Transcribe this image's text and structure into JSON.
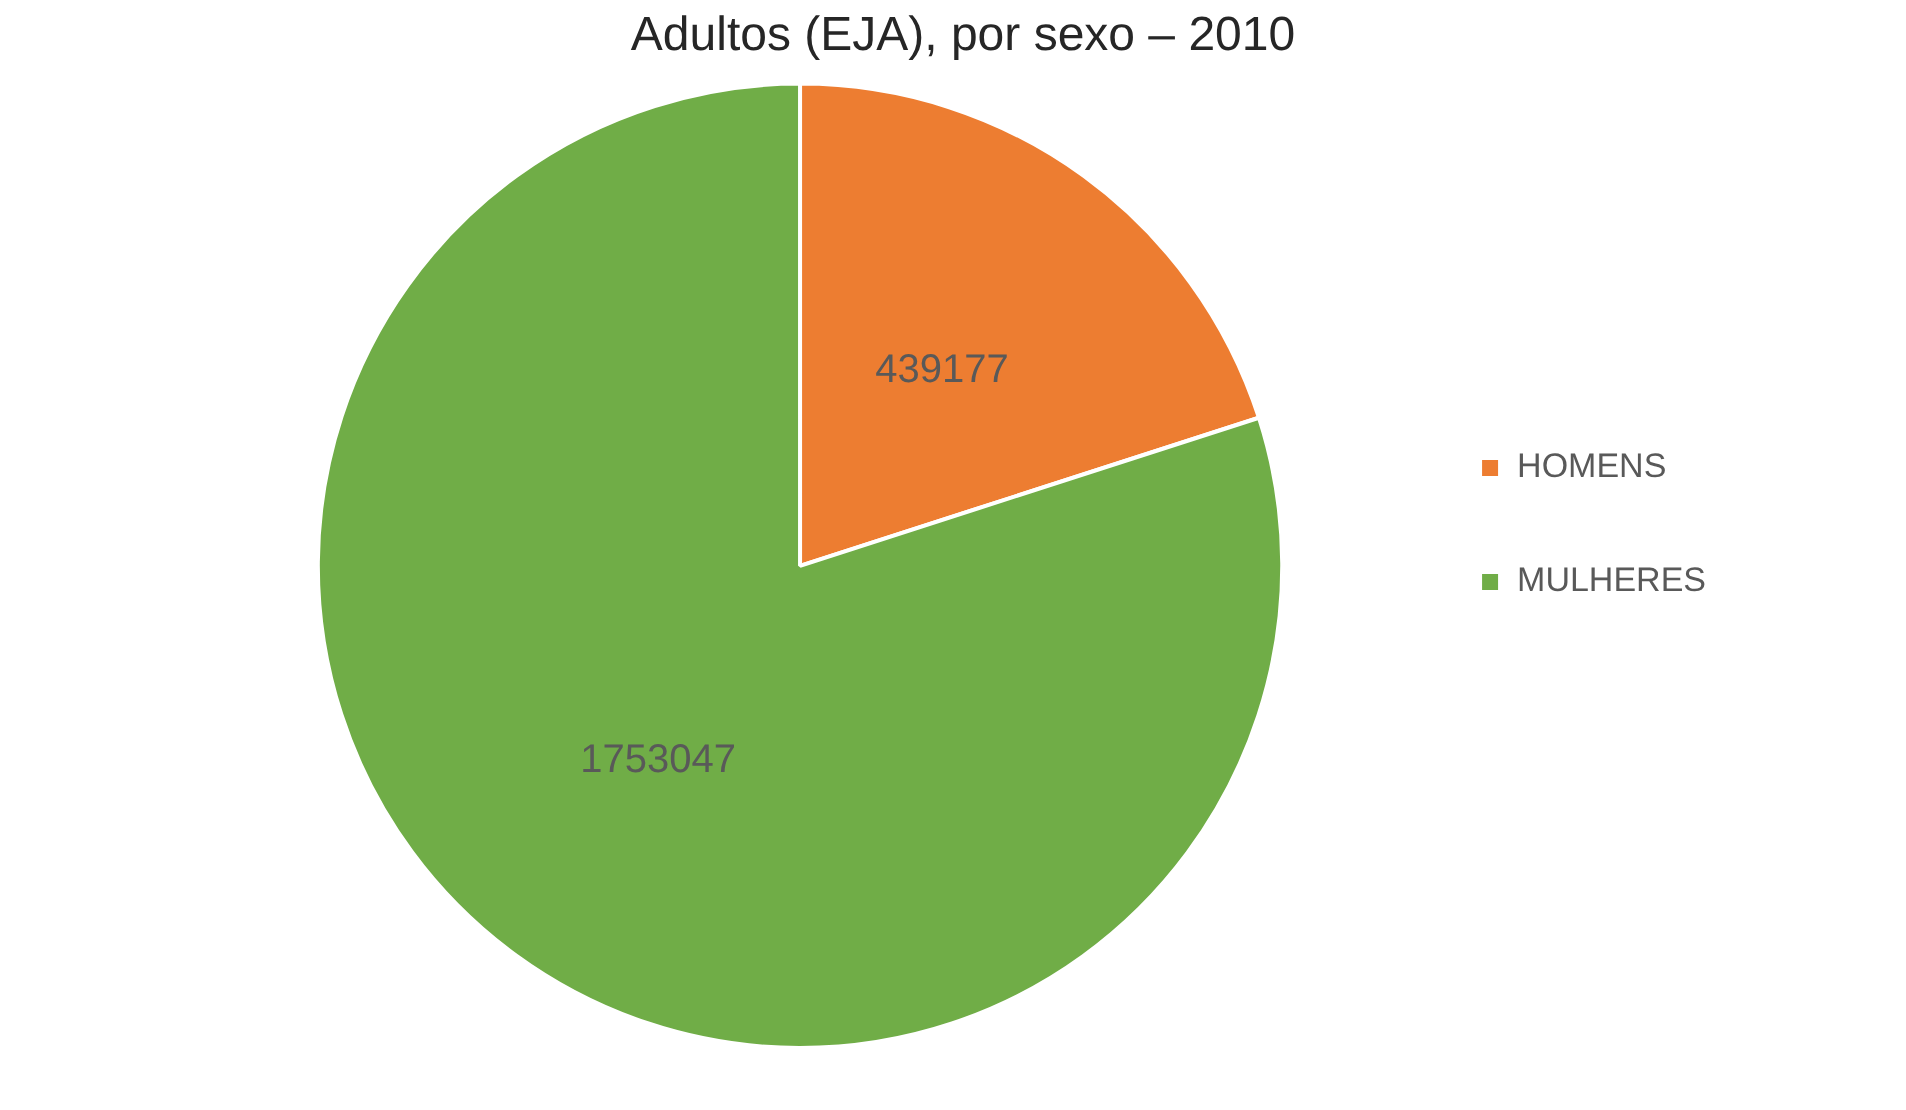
{
  "chart_data": {
    "type": "pie",
    "title": "Adultos (EJA), por sexo – 2010",
    "categories": [
      "HOMENS",
      "MULHERES"
    ],
    "values": [
      439177,
      1753047
    ],
    "colors": [
      "#ed7d31",
      "#70ad47"
    ],
    "data_labels": true,
    "legend": "right"
  }
}
